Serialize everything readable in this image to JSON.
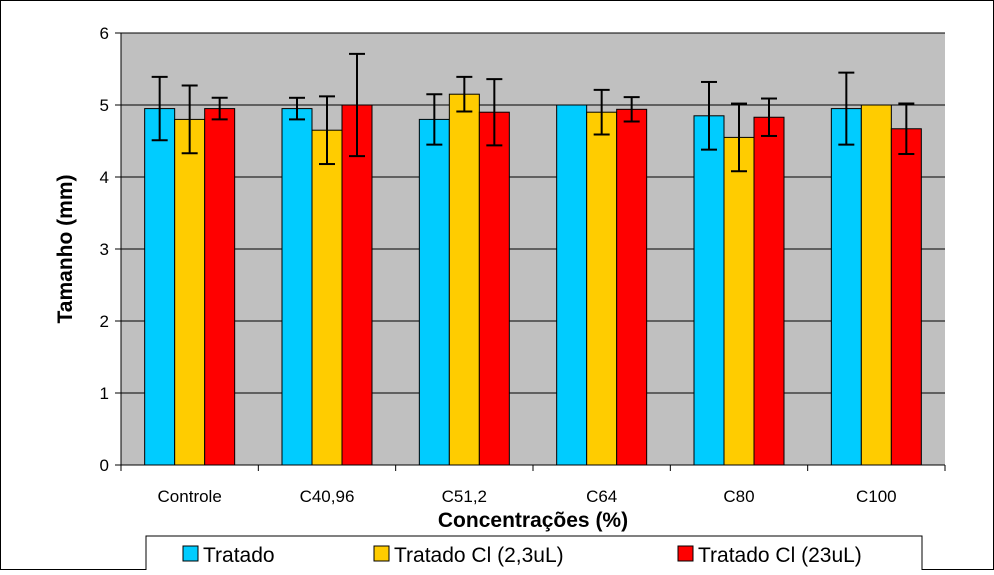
{
  "chart_data": {
    "type": "bar",
    "title": "",
    "xlabel": "Concentrações (%)",
    "ylabel": "Tamanho (mm)",
    "ylim": [
      0,
      6
    ],
    "yticks": [
      "0",
      "1",
      "2",
      "3",
      "4",
      "5",
      "6"
    ],
    "grid": true,
    "legend_position": "bottom",
    "categories": [
      "Controle",
      "C40,96",
      "C51,2",
      "C64",
      "C80",
      "C100"
    ],
    "series": [
      {
        "name": "Tratado",
        "color": "#00ccff",
        "values": [
          4.95,
          4.95,
          4.8,
          5.0,
          4.85,
          4.95
        ],
        "errors": [
          0.44,
          0.15,
          0.35,
          0.0,
          0.47,
          0.5
        ]
      },
      {
        "name": "Tratado Cl (2,3uL)",
        "color": "#ffcc00",
        "values": [
          4.8,
          4.65,
          5.15,
          4.9,
          4.55,
          5.0
        ],
        "errors": [
          0.47,
          0.47,
          0.24,
          0.31,
          0.47,
          0.0
        ]
      },
      {
        "name": "Tratado Cl (23uL)",
        "color": "#ff0000",
        "values": [
          4.95,
          5.0,
          4.9,
          4.94,
          4.83,
          4.67
        ],
        "errors": [
          0.15,
          0.71,
          0.46,
          0.17,
          0.26,
          0.35
        ]
      }
    ],
    "plot_background": "#c0c0c0"
  }
}
